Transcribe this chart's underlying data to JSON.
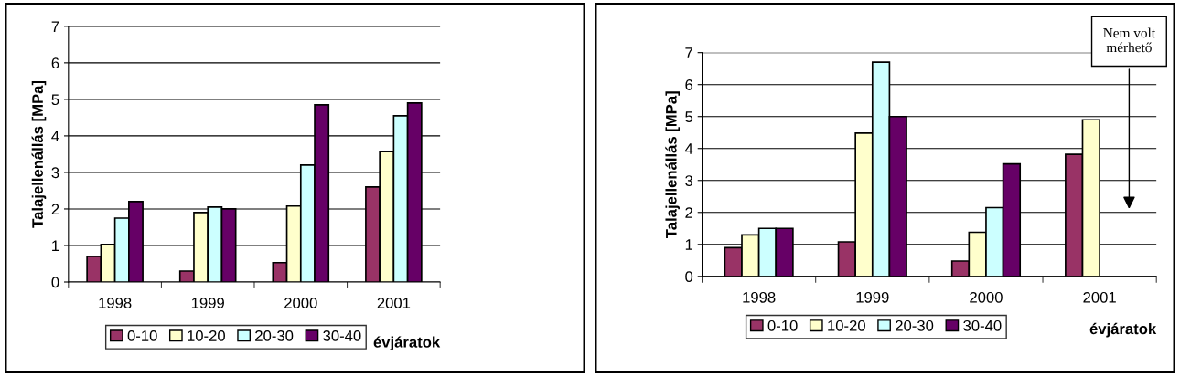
{
  "chart_data": [
    {
      "type": "bar",
      "ylabel": "Talajellenállás [MPa]",
      "xlabel": "évjáratok",
      "categories": [
        "1998",
        "1999",
        "2000",
        "2001"
      ],
      "ylim": [
        0,
        7
      ],
      "yticks": [
        0,
        1,
        2,
        3,
        4,
        5,
        6,
        7
      ],
      "grid": "y",
      "legend": "bottom",
      "series": [
        {
          "name": "0-10",
          "color": "#993366",
          "values": [
            0.7,
            0.3,
            0.53,
            2.6
          ]
        },
        {
          "name": "10-20",
          "color": "#ffffcc",
          "values": [
            1.03,
            1.9,
            2.08,
            3.57
          ]
        },
        {
          "name": "20-30",
          "color": "#ccffff",
          "values": [
            1.75,
            2.05,
            3.2,
            4.55
          ]
        },
        {
          "name": "30-40",
          "color": "#660066",
          "values": [
            2.2,
            2.0,
            4.85,
            4.9
          ]
        }
      ]
    },
    {
      "type": "bar",
      "ylabel": "Talajellenállás [MPa]",
      "xlabel": "évjáratok",
      "categories": [
        "1998",
        "1999",
        "2000",
        "2001"
      ],
      "ylim": [
        0,
        7
      ],
      "yticks": [
        0,
        1,
        2,
        3,
        4,
        5,
        6,
        7
      ],
      "grid": "y",
      "legend": "bottom",
      "annotations": [
        "Nem volt\nmérhető"
      ],
      "series": [
        {
          "name": "0-10",
          "color": "#993366",
          "values": [
            0.9,
            1.08,
            0.48,
            3.82
          ]
        },
        {
          "name": "10-20",
          "color": "#ffffcc",
          "values": [
            1.3,
            4.48,
            1.38,
            4.9
          ]
        },
        {
          "name": "20-30",
          "color": "#ccffff",
          "values": [
            1.5,
            6.7,
            2.15,
            null
          ]
        },
        {
          "name": "30-40",
          "color": "#660066",
          "values": [
            1.5,
            5.0,
            3.52,
            null
          ]
        }
      ]
    }
  ]
}
